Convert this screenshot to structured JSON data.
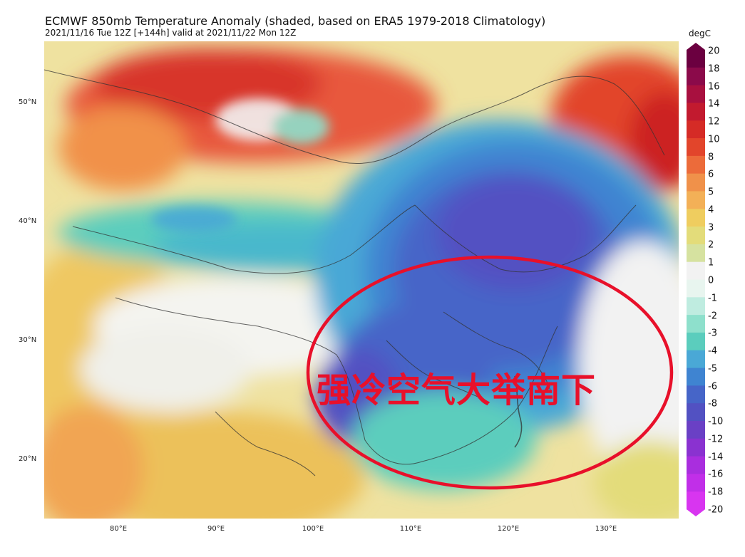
{
  "header": {
    "title": "ECMWF 850mb Temperature Anomaly (shaded, based on ERA5 1979-2018 Climatology)",
    "subtitle": "2021/11/16 Tue 12Z [+144h] valid at 2021/11/22 Mon 12Z"
  },
  "axes": {
    "lat_labels": [
      "50°N",
      "40°N",
      "30°N",
      "20°N"
    ],
    "lon_labels": [
      "80°E",
      "90°E",
      "100°E",
      "110°E",
      "120°E",
      "130°E"
    ]
  },
  "colorbar": {
    "unit": "degC",
    "ticks": [
      "20",
      "18",
      "16",
      "14",
      "12",
      "10",
      "8",
      "6",
      "5",
      "4",
      "3",
      "2",
      "1",
      "0",
      "-1",
      "-2",
      "-3",
      "-4",
      "-5",
      "-6",
      "-8",
      "-10",
      "-12",
      "-14",
      "-16",
      "-18",
      "-20"
    ],
    "colors": [
      "#6b0040",
      "#8b0a4a",
      "#a8103f",
      "#c21a2f",
      "#d52b26",
      "#e2452b",
      "#ec6b3a",
      "#f0914a",
      "#f3b057",
      "#efcd5f",
      "#e3dc7a",
      "#d6e2a0",
      "#f2f2f2",
      "#e8f5ef",
      "#bfece0",
      "#8ee0cc",
      "#5bcdbd",
      "#4aa8d6",
      "#3f84d1",
      "#4665c8",
      "#5251c2",
      "#6a40c5",
      "#8a32d0",
      "#a92ede",
      "#c12fe8",
      "#d835f0"
    ]
  },
  "annotation": {
    "text": "强冷空气大举南下",
    "color": "#e8102a"
  }
}
